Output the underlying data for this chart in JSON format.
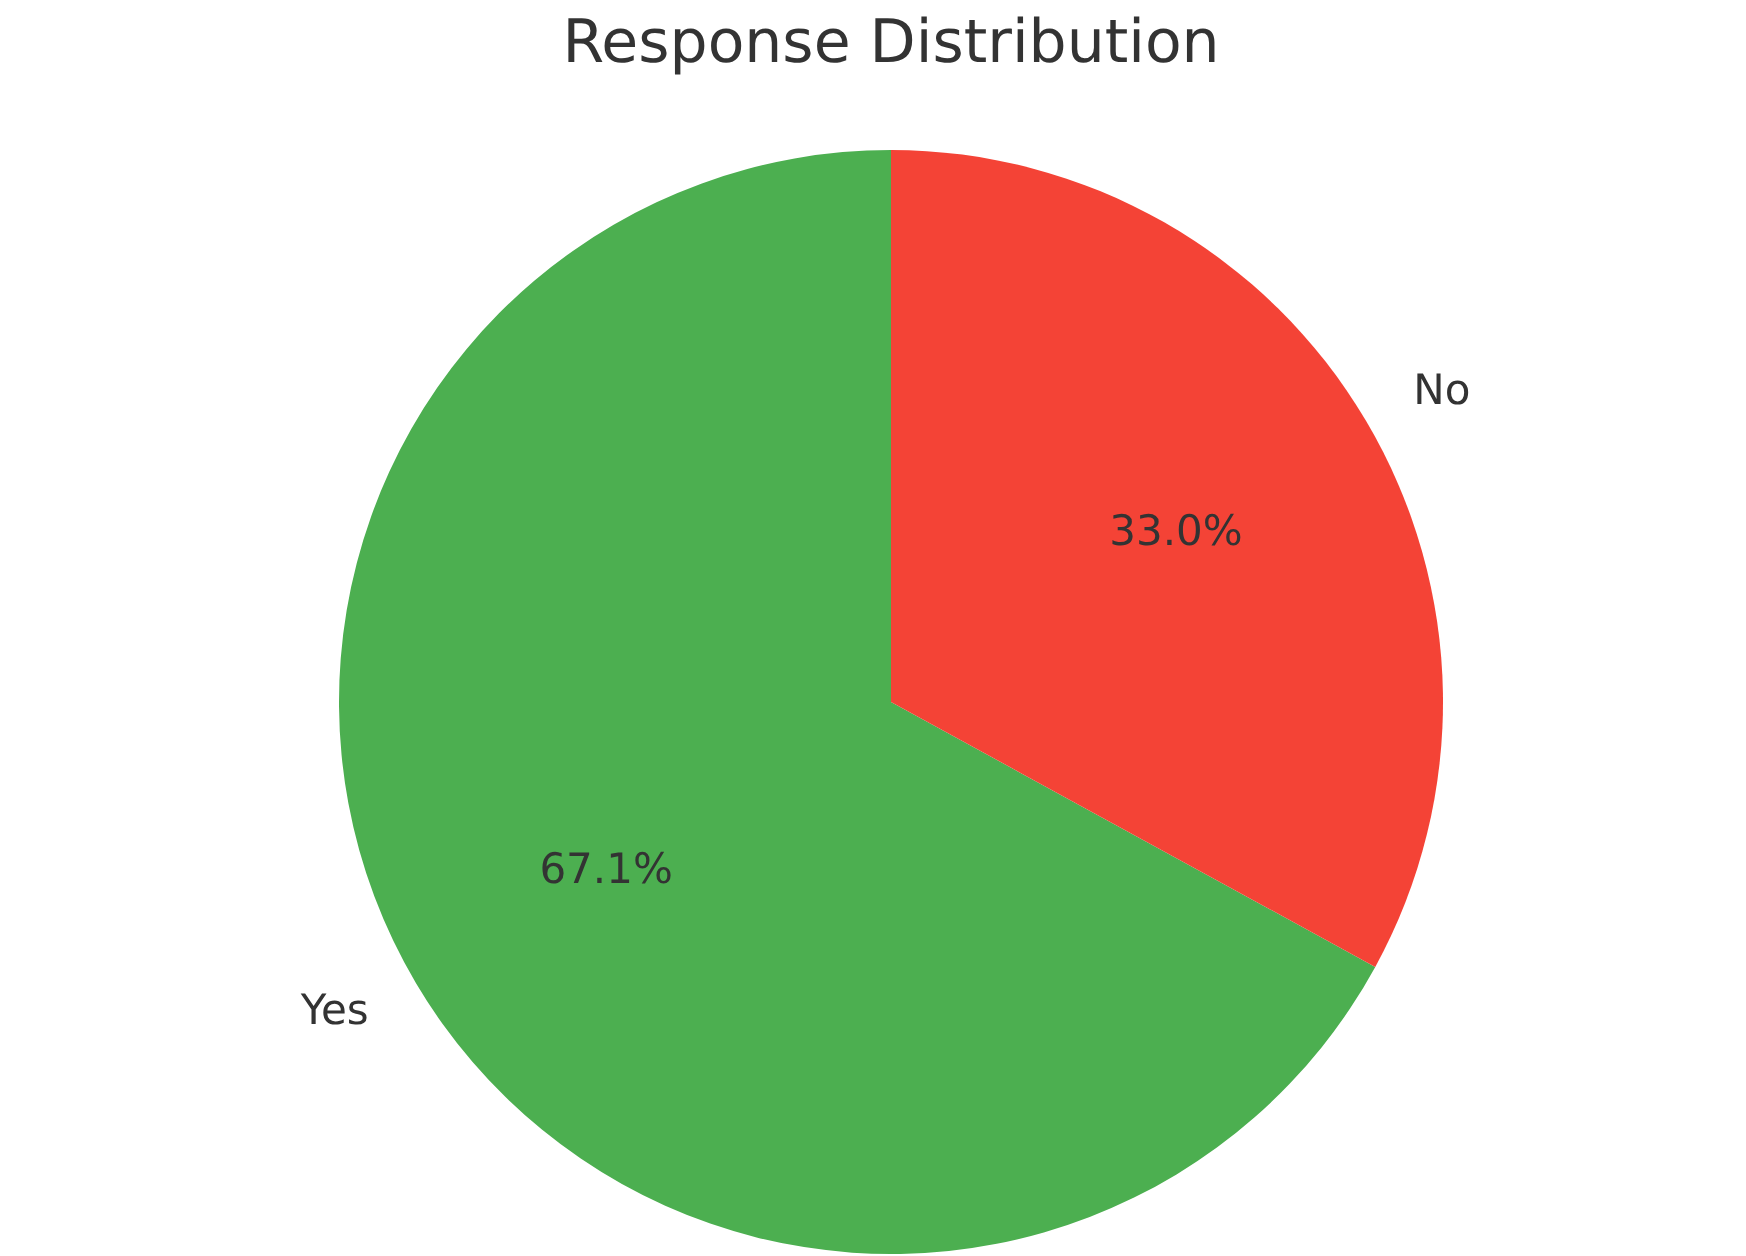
{
  "chart_data": {
    "type": "pie",
    "title": "Response Distribution",
    "categories": [
      "Yes",
      "No"
    ],
    "values": [
      67.1,
      33.0
    ],
    "colors": [
      "#4caf50",
      "#f44336"
    ],
    "value_labels": [
      "67.1%",
      "33.0%"
    ]
  }
}
